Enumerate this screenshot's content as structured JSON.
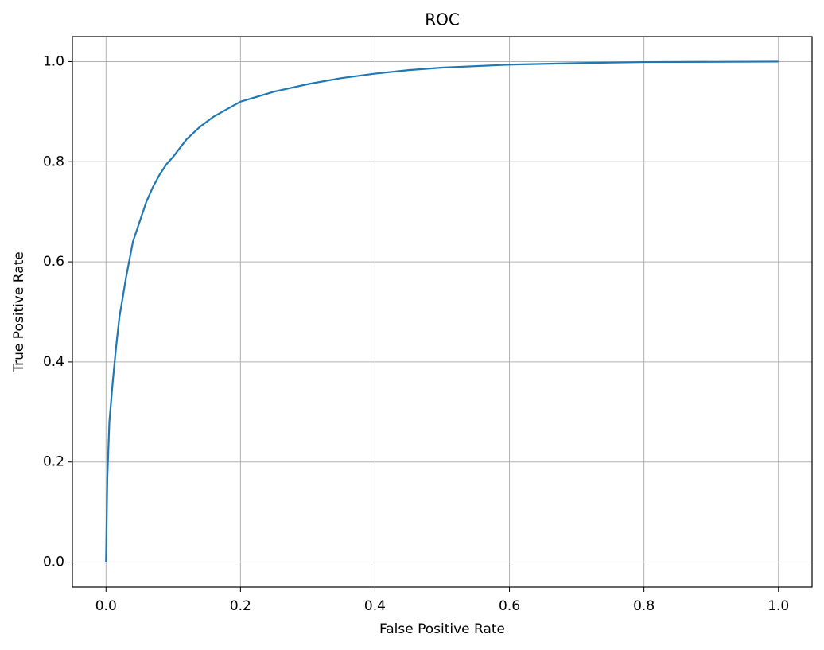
{
  "chart_data": {
    "type": "line",
    "title": "ROC",
    "xlabel": "False Positive Rate",
    "ylabel": "True Positive Rate",
    "x": [
      0,
      0.002,
      0.005,
      0.01,
      0.015,
      0.02,
      0.03,
      0.04,
      0.05,
      0.06,
      0.07,
      0.08,
      0.09,
      0.1,
      0.12,
      0.14,
      0.16,
      0.18,
      0.2,
      0.25,
      0.3,
      0.35,
      0.4,
      0.45,
      0.5,
      0.6,
      0.7,
      0.8,
      1.0
    ],
    "values": [
      0,
      0.17,
      0.28,
      0.36,
      0.43,
      0.49,
      0.57,
      0.64,
      0.68,
      0.72,
      0.75,
      0.775,
      0.795,
      0.81,
      0.845,
      0.87,
      0.89,
      0.905,
      0.92,
      0.94,
      0.955,
      0.967,
      0.976,
      0.983,
      0.988,
      0.994,
      0.997,
      0.999,
      1.0
    ],
    "color": "#1f77b4",
    "xlim": [
      -0.05,
      1.05
    ],
    "ylim": [
      -0.05,
      1.05
    ],
    "xticks": [
      {
        "value": 0,
        "label": "0.0"
      },
      0.2,
      0.4,
      0.6,
      0.8,
      {
        "value": 1,
        "label": "1.0"
      }
    ],
    "yticks": [
      {
        "value": 0,
        "label": "0.0"
      },
      0.2,
      0.4,
      0.6,
      0.8,
      {
        "value": 1,
        "label": "1.0"
      }
    ],
    "grid": true
  }
}
